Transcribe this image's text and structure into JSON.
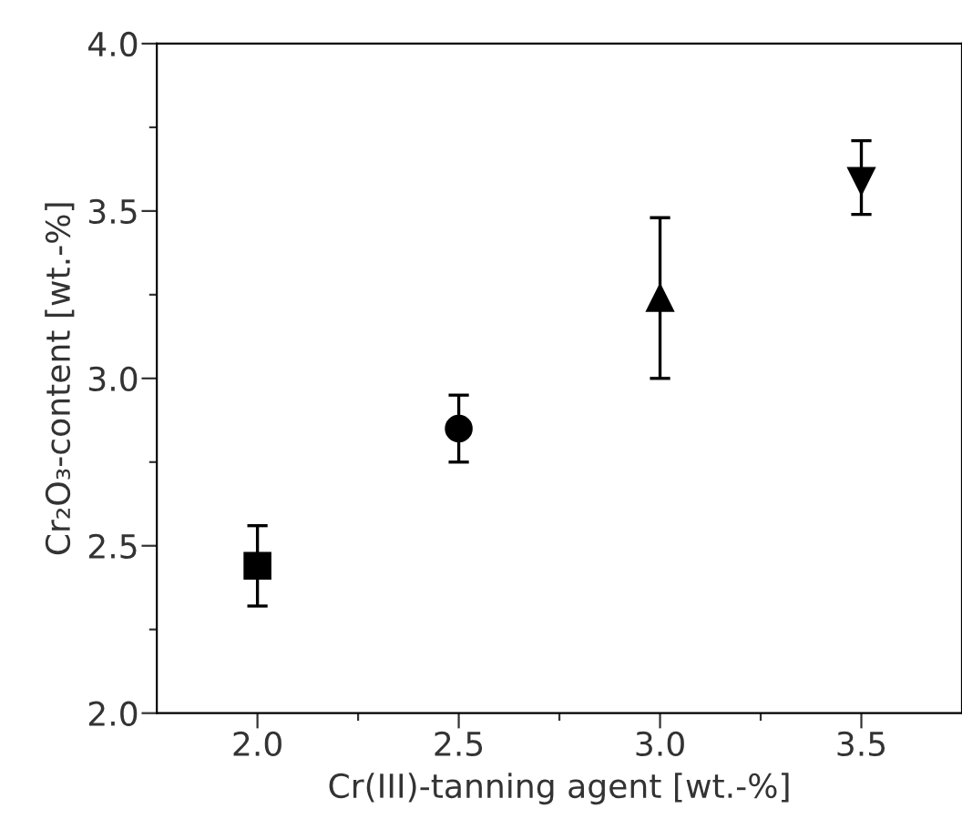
{
  "chart_data": {
    "type": "scatter",
    "xlabel": "Cr(III)-tanning agent [wt.-%]",
    "ylabel": "Cr₂O₃-content [wt.-%]",
    "xlim": [
      1.75,
      3.75
    ],
    "ylim": [
      2.0,
      4.0
    ],
    "xticks": [
      {
        "value": 2,
        "label": "2.0"
      },
      {
        "value": 2.25,
        "label": null
      },
      2.5,
      {
        "value": 2.75,
        "label": null
      },
      {
        "value": 3,
        "label": "3.0"
      },
      {
        "value": 3.25,
        "label": null
      },
      3.5
    ],
    "yticks": [
      {
        "value": 2,
        "label": "2.0"
      },
      {
        "value": 2.25,
        "label": null
      },
      2.5,
      {
        "value": 2.75,
        "label": null
      },
      {
        "value": 3,
        "label": "3.0"
      },
      {
        "value": 3.25,
        "label": null
      },
      3.5,
      {
        "value": 3.75,
        "label": null
      },
      {
        "value": 4,
        "label": "4.0"
      }
    ],
    "grid": false,
    "legend": false,
    "series": [
      {
        "color": "#000000",
        "marker": "square",
        "x": [
          2.0
        ],
        "values": [
          2.44
        ],
        "errors": [
          0.12
        ]
      },
      {
        "color": "#000000",
        "marker": "circle",
        "x": [
          2.5
        ],
        "values": [
          2.85
        ],
        "errors": [
          0.1
        ]
      },
      {
        "color": "#000000",
        "marker": "triangle",
        "x": [
          3.0
        ],
        "values": [
          3.24
        ],
        "errors": [
          0.24
        ]
      },
      {
        "color": "#000000",
        "marker": "triangle_down",
        "x": [
          3.5
        ],
        "values": [
          3.59
        ],
        "errors": [
          [
            3.49,
            3.71
          ]
        ]
      }
    ]
  }
}
